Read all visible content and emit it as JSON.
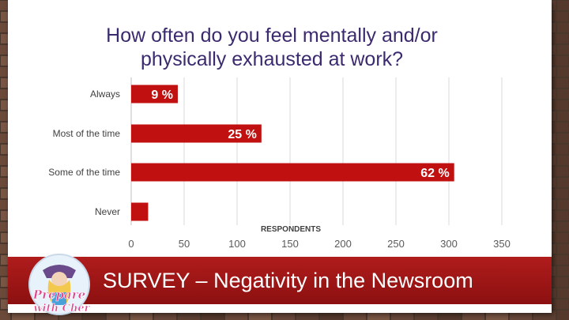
{
  "slide": {
    "footer_title": "SURVEY – Negativity in the Newsroom",
    "logo_text": "Prepare with Cher"
  },
  "colors": {
    "bar": "#c01010",
    "title": "#3c2a6e",
    "footer": "#a01515",
    "grid": "#d9d9d9"
  },
  "chart_data": {
    "type": "bar",
    "orientation": "horizontal",
    "title": "How often do you feel mentally and/or physically exhausted at work?",
    "title_lines": [
      "How often do you feel mentally and/or",
      "physically exhausted at work?"
    ],
    "xlabel": "RESPONDENTS",
    "categories": [
      "Always",
      "Most of the time",
      "Some of the time",
      "Never"
    ],
    "values": [
      44,
      123,
      305,
      16
    ],
    "data_labels": [
      "9 %",
      "25 %",
      "62 %",
      ""
    ],
    "xlim": [
      0,
      350
    ],
    "xticks": [
      0,
      50,
      100,
      150,
      200,
      250,
      300,
      350
    ],
    "grid": true
  }
}
